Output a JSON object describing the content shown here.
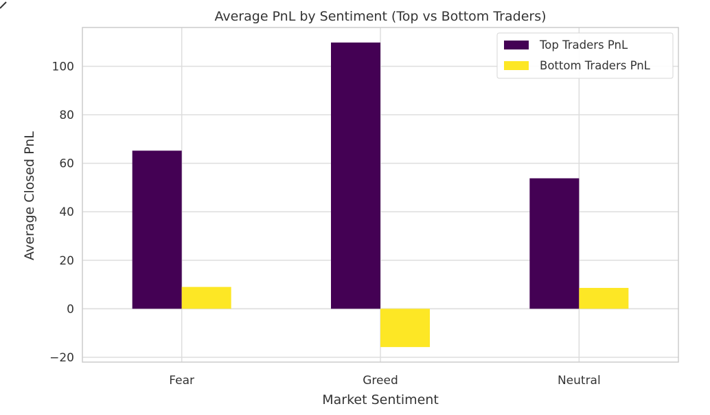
{
  "chart_data": {
    "type": "bar",
    "title": "Average PnL by Sentiment (Top vs Bottom Traders)",
    "xlabel": "Market Sentiment",
    "ylabel": "Average Closed PnL",
    "categories": [
      "Fear",
      "Greed",
      "Neutral"
    ],
    "series": [
      {
        "name": "Top Traders PnL",
        "color": "#440154",
        "values": [
          65.2,
          109.8,
          53.8
        ]
      },
      {
        "name": "Bottom Traders PnL",
        "color": "#fde725",
        "values": [
          9.0,
          -15.8,
          8.6
        ]
      }
    ],
    "ylim": [
      -22,
      116
    ],
    "yticks": [
      -20,
      0,
      20,
      40,
      60,
      80,
      100
    ],
    "ytick_labels": [
      "−20",
      "0",
      "20",
      "40",
      "60",
      "80",
      "100"
    ],
    "grid": true,
    "legend_position": "top-right"
  }
}
